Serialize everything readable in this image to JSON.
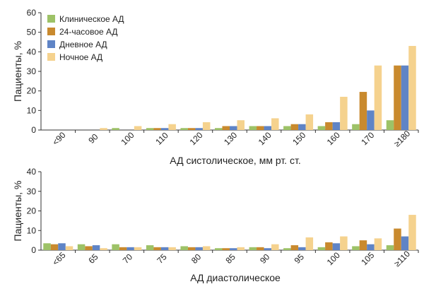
{
  "legend": [
    "Клиническое АД",
    "24-часовое АД",
    "Дневное АД",
    "Ночное АД"
  ],
  "colors": [
    "#9dc267",
    "#c98a2e",
    "#5f84c6",
    "#f5d28e"
  ],
  "chart_data": [
    {
      "type": "bar",
      "ylabel": "Пациенты, %",
      "xlabel": "АД систолическое, мм рт. ст.",
      "ylim": [
        0,
        60
      ],
      "yticks": [
        0,
        10,
        20,
        30,
        40,
        50,
        60
      ],
      "categories": [
        "<90",
        "90",
        "100",
        "110",
        "120",
        "130",
        "140",
        "150",
        "160",
        "170",
        "≥180"
      ],
      "series": [
        {
          "name": "Клиническое АД",
          "values": [
            0,
            0,
            1,
            1,
            1,
            1,
            2,
            2,
            2,
            3,
            5
          ]
        },
        {
          "name": "24-часовое АД",
          "values": [
            0,
            0,
            0,
            1,
            1,
            2,
            2,
            3,
            4,
            19.5,
            33
          ]
        },
        {
          "name": "Дневное АД",
          "values": [
            0,
            0,
            0,
            1,
            1,
            2,
            2,
            3,
            4,
            10,
            33
          ]
        },
        {
          "name": "Ночное АД",
          "values": [
            0,
            1,
            2,
            3,
            4,
            5,
            6,
            8,
            17,
            33,
            43
          ]
        }
      ]
    },
    {
      "type": "bar",
      "ylabel": "Пациенты, %",
      "xlabel": "АД диастолическое",
      "ylim": [
        0,
        40
      ],
      "yticks": [
        0,
        10,
        20,
        30,
        40
      ],
      "categories": [
        "<65",
        "65",
        "70",
        "75",
        "80",
        "85",
        "90",
        "95",
        "100",
        "105",
        "≥110"
      ],
      "series": [
        {
          "name": "Клиническое АД",
          "values": [
            3.5,
            3,
            3,
            2.5,
            2,
            1,
            1.5,
            1,
            1.5,
            2,
            2.5
          ]
        },
        {
          "name": "24-часовое АД",
          "values": [
            3,
            2,
            1.5,
            1.5,
            1.5,
            1,
            1.5,
            2.5,
            4,
            5,
            11
          ]
        },
        {
          "name": "Дневное АД",
          "values": [
            3.5,
            2.5,
            1.5,
            1.5,
            1.5,
            1,
            1,
            1.5,
            3.5,
            3,
            7
          ]
        },
        {
          "name": "Ночное АД",
          "values": [
            2,
            1,
            1.5,
            1.5,
            2,
            1.5,
            3,
            6.5,
            7,
            6,
            18
          ]
        }
      ]
    }
  ]
}
